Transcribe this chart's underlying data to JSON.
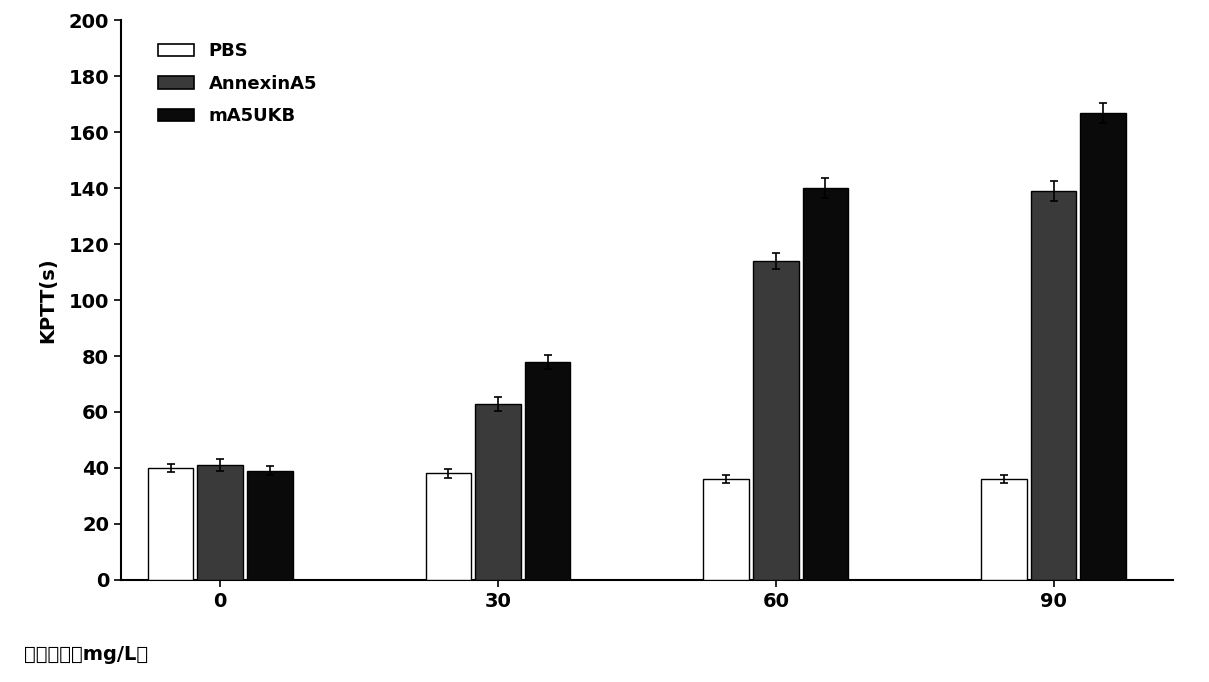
{
  "categories": [
    0,
    30,
    60,
    90
  ],
  "PBS": [
    40,
    38,
    36,
    36
  ],
  "PBS_err": [
    1.5,
    1.5,
    1.5,
    1.5
  ],
  "AnnexinA5": [
    41,
    63,
    114,
    139
  ],
  "AnnexinA5_err": [
    2.0,
    2.5,
    3.0,
    3.5
  ],
  "mA5UKB": [
    39,
    78,
    140,
    167
  ],
  "mA5UKB_err": [
    1.5,
    2.5,
    3.5,
    3.5
  ],
  "ylabel": "KPTT(s)",
  "xlabel": "蛋白浓度（mg/L）",
  "ylim": [
    0,
    200
  ],
  "yticks": [
    0,
    20,
    40,
    60,
    80,
    100,
    120,
    140,
    160,
    180,
    200
  ],
  "xtick_labels": [
    "0",
    "30",
    "60",
    "90"
  ],
  "legend_labels": [
    "PBS",
    "AnnexinA5",
    "mA5UKB"
  ],
  "bar_colors": [
    "white",
    "#3a3a3a",
    "#0a0a0a"
  ],
  "bar_edgecolor": "black",
  "background_color": "white",
  "bar_width": 0.25,
  "group_positions": [
    0.5,
    1.9,
    3.3,
    4.7
  ]
}
